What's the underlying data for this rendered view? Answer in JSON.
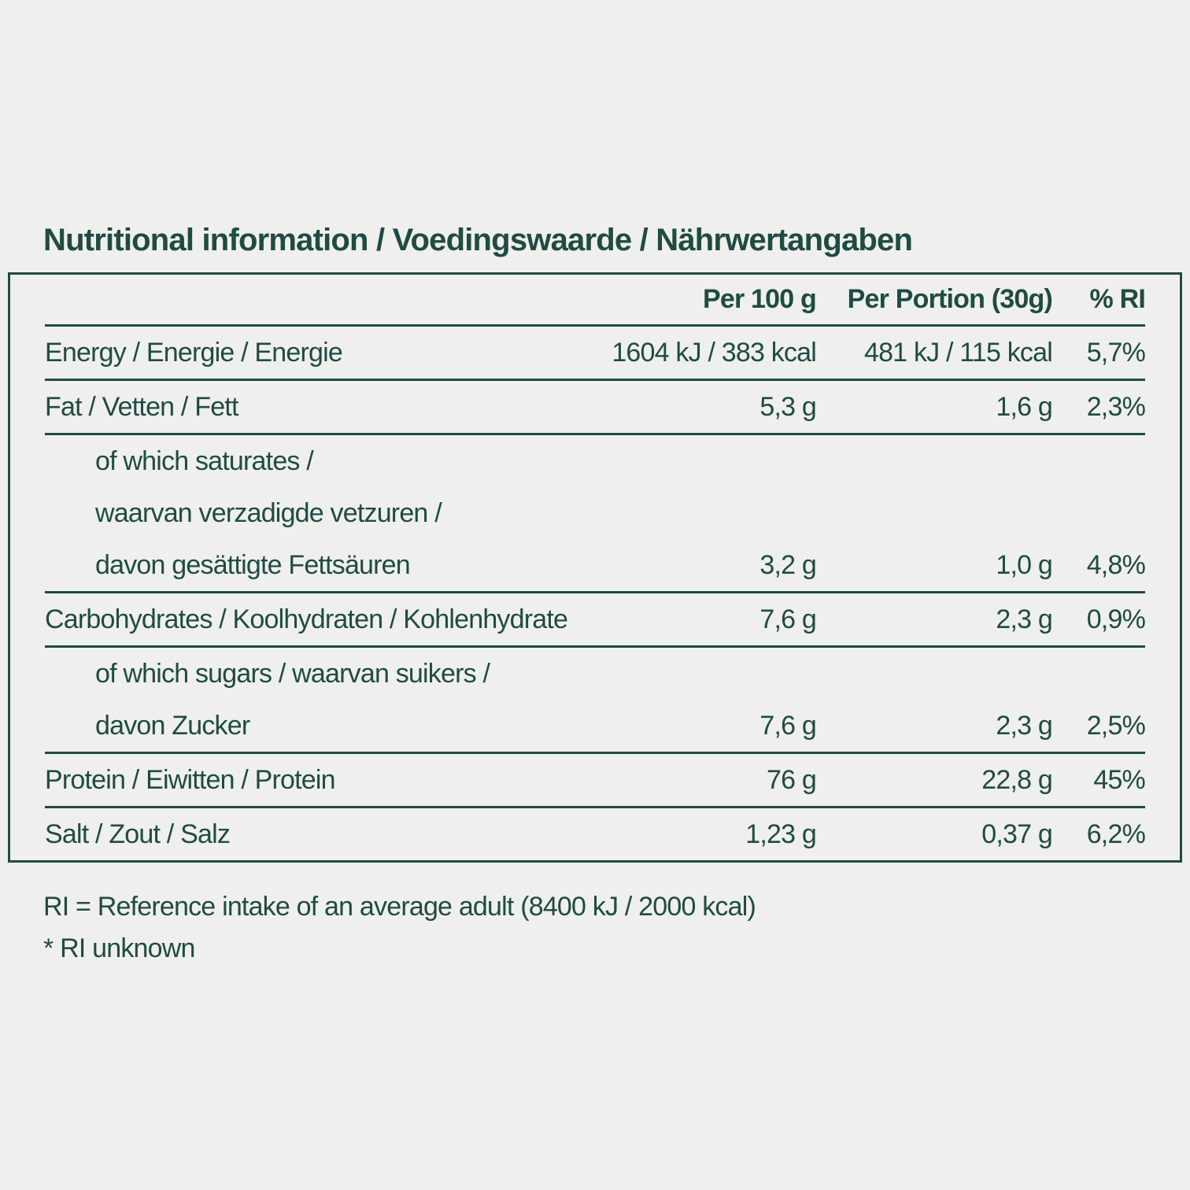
{
  "page": {
    "background_color": "#efefee",
    "text_color": "#1f4b42",
    "border_color": "#1f4b42"
  },
  "title": "Nutritional information / Voedingswaarde / Nährwertangaben",
  "table": {
    "columns": {
      "label": "",
      "per_100g": "Per 100 g",
      "per_portion": "Per Portion (30g)",
      "percent_ri": "% RI"
    },
    "rows": [
      {
        "label_lines": [
          "Energy / Energie / Energie"
        ],
        "indent": false,
        "per_100g": "1604 kJ / 383 kcal",
        "per_portion": "481 kJ / 115 kcal",
        "percent_ri": "5,7%"
      },
      {
        "label_lines": [
          "Fat / Vetten / Fett"
        ],
        "indent": false,
        "per_100g": "5,3 g",
        "per_portion": "1,6 g",
        "percent_ri": "2,3%"
      },
      {
        "label_lines": [
          "of which saturates /",
          "waarvan verzadigde vetzuren /",
          "davon gesättigte Fettsäuren"
        ],
        "indent": true,
        "per_100g": "3,2 g",
        "per_portion": "1,0 g",
        "percent_ri": "4,8%"
      },
      {
        "label_lines": [
          "Carbohydrates / Koolhydraten / Kohlenhydrate"
        ],
        "indent": false,
        "per_100g": "7,6 g",
        "per_portion": "2,3 g",
        "percent_ri": "0,9%"
      },
      {
        "label_lines": [
          "of which sugars / waarvan suikers /",
          "davon Zucker"
        ],
        "indent": true,
        "per_100g": "7,6 g",
        "per_portion": "2,3 g",
        "percent_ri": "2,5%"
      },
      {
        "label_lines": [
          "Protein / Eiwitten / Protein"
        ],
        "indent": false,
        "per_100g": "76 g",
        "per_portion": "22,8 g",
        "percent_ri": "45%"
      },
      {
        "label_lines": [
          "Salt / Zout / Salz"
        ],
        "indent": false,
        "per_100g": "1,23 g",
        "per_portion": "0,37 g",
        "percent_ri": "6,2%"
      }
    ]
  },
  "footer": {
    "reference_note": "RI = Reference intake of an average adult (8400 kJ / 2000 kcal)",
    "ri_unknown_note": "* RI unknown"
  }
}
